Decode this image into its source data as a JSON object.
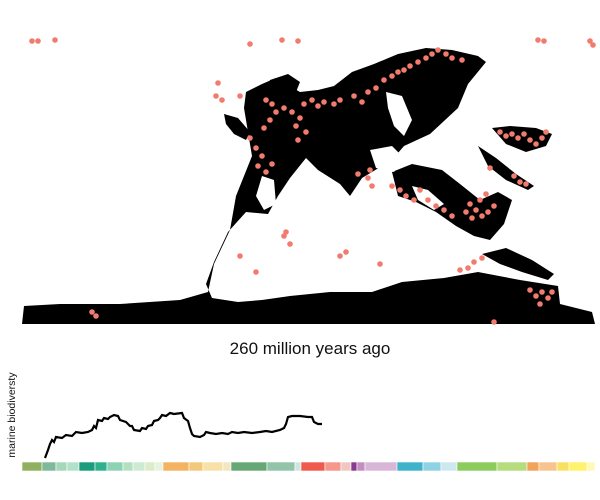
{
  "caption": {
    "age_text": "260 million years ago",
    "age_ma": 260
  },
  "biodiversity": {
    "axis_label": "marine biodiversty"
  },
  "colors": {
    "landmass": "#000000",
    "fossil_dot": "#f07b6e",
    "curve": "#000000",
    "background": "#ffffff"
  },
  "timescale": {
    "periods": [
      {
        "color": "#8fb05f"
      },
      {
        "color": "#7dba9b"
      },
      {
        "color": "#a5d7b8"
      },
      {
        "color": "#b3e0cb"
      },
      {
        "color": "#1a9c7d"
      },
      {
        "color": "#2fb18e"
      },
      {
        "color": "#8ed2b5"
      },
      {
        "color": "#b3e1c0"
      },
      {
        "color": "#cdebd4"
      },
      {
        "color": "#dcecc8"
      },
      {
        "color": "#e6f2e2"
      },
      {
        "color": "#f4b362"
      },
      {
        "color": "#f2c97a"
      },
      {
        "color": "#f8e1a6"
      },
      {
        "color": "#f3e7c2"
      },
      {
        "color": "#67a776"
      },
      {
        "color": "#92c4a8"
      },
      {
        "color": "#cfe6e0"
      },
      {
        "color": "#f05a4d"
      },
      {
        "color": "#f7978c"
      },
      {
        "color": "#f0c7c0"
      },
      {
        "color": "#8a3b8f"
      },
      {
        "color": "#c28fc0"
      },
      {
        "color": "#d7b6d8"
      },
      {
        "color": "#3fb2cc"
      },
      {
        "color": "#8fd2e3"
      },
      {
        "color": "#cde8ef"
      },
      {
        "color": "#8ccc5c"
      },
      {
        "color": "#b5dc7d"
      },
      {
        "color": "#f2a35a"
      },
      {
        "color": "#f7c38e"
      },
      {
        "color": "#f9e061"
      },
      {
        "color": "#fff26d"
      },
      {
        "color": "#fff9b8"
      }
    ]
  }
}
